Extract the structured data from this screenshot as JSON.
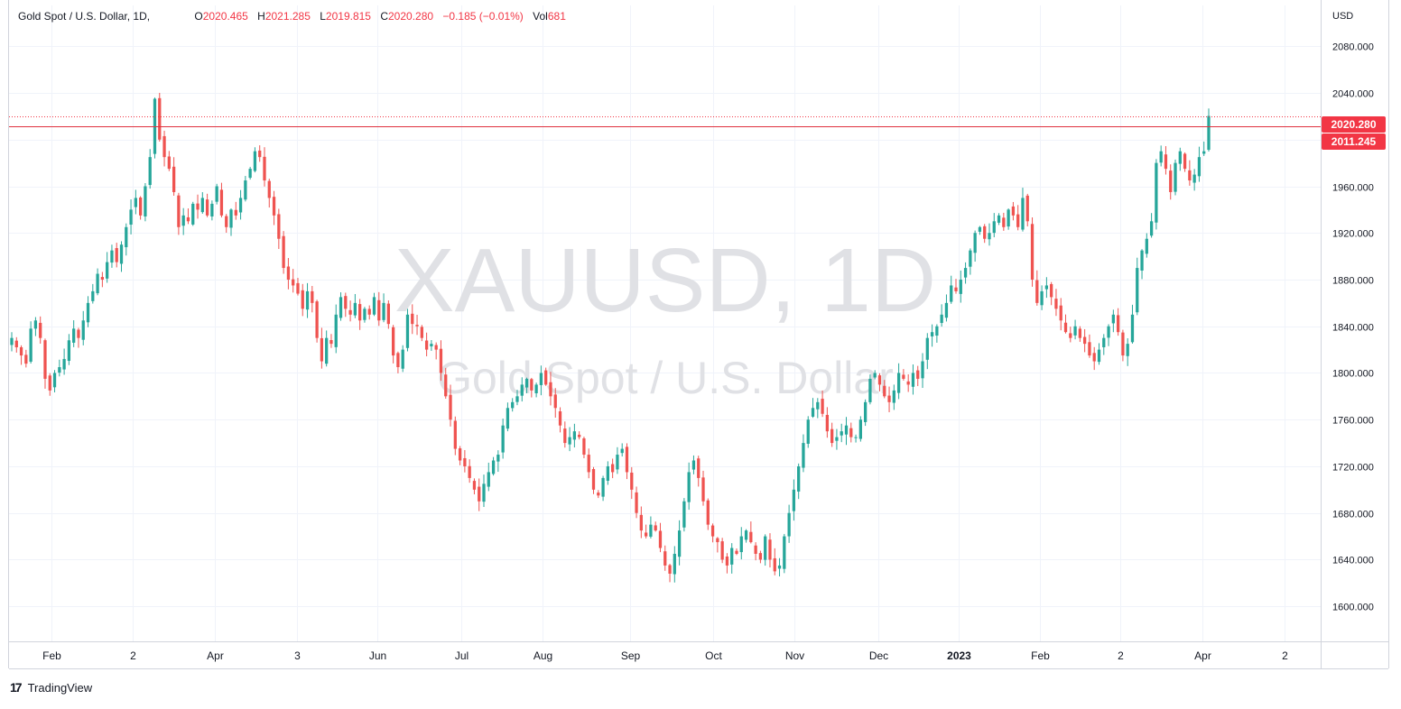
{
  "legend": {
    "symbol": "Gold Spot / U.S. Dollar, 1D,",
    "open_label": "O",
    "open": "2020.465",
    "high_label": "H",
    "high": "2021.285",
    "low_label": "L",
    "low": "2019.815",
    "close_label": "C",
    "close": "2020.280",
    "change": "−0.185 (−0.01%)",
    "vol_label": "Vol",
    "vol": "681"
  },
  "watermark": {
    "ticker": "XAUUSD, 1D",
    "name": "Gold Spot / U.S. Dollar"
  },
  "currency": "USD",
  "branding": {
    "name": "TradingView",
    "mark": "17"
  },
  "price_tags": {
    "last": "2020.280",
    "line": "2011.245"
  },
  "colors": {
    "up": "#26a69a",
    "down": "#ef5350",
    "accent": "#f23645"
  },
  "chart_data": {
    "type": "candlestick",
    "title": "",
    "x_tick_labels": [
      "Feb",
      "2",
      "Apr",
      "3",
      "Jun",
      "Jul",
      "Aug",
      "Sep",
      "Oct",
      "Nov",
      "Dec",
      "2023",
      "Feb",
      "2",
      "Apr",
      "2"
    ],
    "y_ticks": [
      1600,
      1640,
      1680,
      1720,
      1760,
      1800,
      1840,
      1880,
      1920,
      1960,
      2000,
      2040,
      2080
    ],
    "y_tick_labels": [
      "1600.000",
      "1640.000",
      "1680.000",
      "1720.000",
      "1760.000",
      "1800.000",
      "1840.000",
      "1880.000",
      "1920.000",
      "1960.000",
      "2000.000",
      "2040.000",
      "2080.000"
    ],
    "ylim": [
      1570,
      2115
    ],
    "horizontal_line": 2011.245,
    "last_price": 2020.28,
    "grid": true,
    "closes": [
      1830,
      1822,
      1815,
      1808,
      1838,
      1845,
      1830,
      1795,
      1785,
      1800,
      1805,
      1812,
      1828,
      1838,
      1830,
      1845,
      1860,
      1870,
      1885,
      1880,
      1895,
      1905,
      1895,
      1910,
      1925,
      1940,
      1950,
      1935,
      1960,
      1985,
      2035,
      2000,
      1985,
      1975,
      1955,
      1925,
      1935,
      1930,
      1945,
      1940,
      1950,
      1935,
      1945,
      1960,
      1935,
      1925,
      1940,
      1935,
      1950,
      1965,
      1975,
      1990,
      1985,
      1965,
      1950,
      1935,
      1915,
      1890,
      1880,
      1875,
      1868,
      1855,
      1870,
      1860,
      1830,
      1810,
      1830,
      1825,
      1850,
      1865,
      1855,
      1850,
      1860,
      1845,
      1855,
      1850,
      1865,
      1845,
      1860,
      1842,
      1815,
      1805,
      1820,
      1850,
      1842,
      1840,
      1830,
      1820,
      1825,
      1820,
      1800,
      1780,
      1760,
      1735,
      1725,
      1720,
      1710,
      1700,
      1690,
      1705,
      1715,
      1725,
      1730,
      1755,
      1770,
      1775,
      1780,
      1790,
      1795,
      1785,
      1790,
      1800,
      1790,
      1780,
      1770,
      1755,
      1740,
      1745,
      1750,
      1745,
      1730,
      1715,
      1700,
      1695,
      1710,
      1720,
      1715,
      1730,
      1735,
      1715,
      1700,
      1680,
      1665,
      1660,
      1670,
      1665,
      1650,
      1635,
      1628,
      1645,
      1665,
      1690,
      1715,
      1725,
      1710,
      1690,
      1670,
      1660,
      1655,
      1640,
      1635,
      1650,
      1645,
      1660,
      1665,
      1655,
      1645,
      1640,
      1660,
      1640,
      1630,
      1635,
      1660,
      1680,
      1700,
      1720,
      1740,
      1760,
      1770,
      1775,
      1765,
      1750,
      1740,
      1745,
      1750,
      1755,
      1745,
      1745,
      1760,
      1775,
      1795,
      1800,
      1790,
      1780,
      1775,
      1785,
      1800,
      1795,
      1790,
      1800,
      1795,
      1810,
      1830,
      1835,
      1840,
      1850,
      1860,
      1875,
      1870,
      1880,
      1890,
      1905,
      1920,
      1925,
      1915,
      1920,
      1930,
      1935,
      1925,
      1940,
      1935,
      1925,
      1950,
      1930,
      1880,
      1860,
      1870,
      1875,
      1865,
      1855,
      1845,
      1835,
      1830,
      1840,
      1830,
      1825,
      1815,
      1810,
      1820,
      1830,
      1840,
      1850,
      1835,
      1815,
      1825,
      1850,
      1890,
      1905,
      1915,
      1930,
      1980,
      1990,
      1975,
      1955,
      1980,
      1990,
      1975,
      1965,
      1970,
      1985,
      1990,
      2020.28
    ],
    "x_axis_label": "",
    "y_axis_label": ""
  }
}
